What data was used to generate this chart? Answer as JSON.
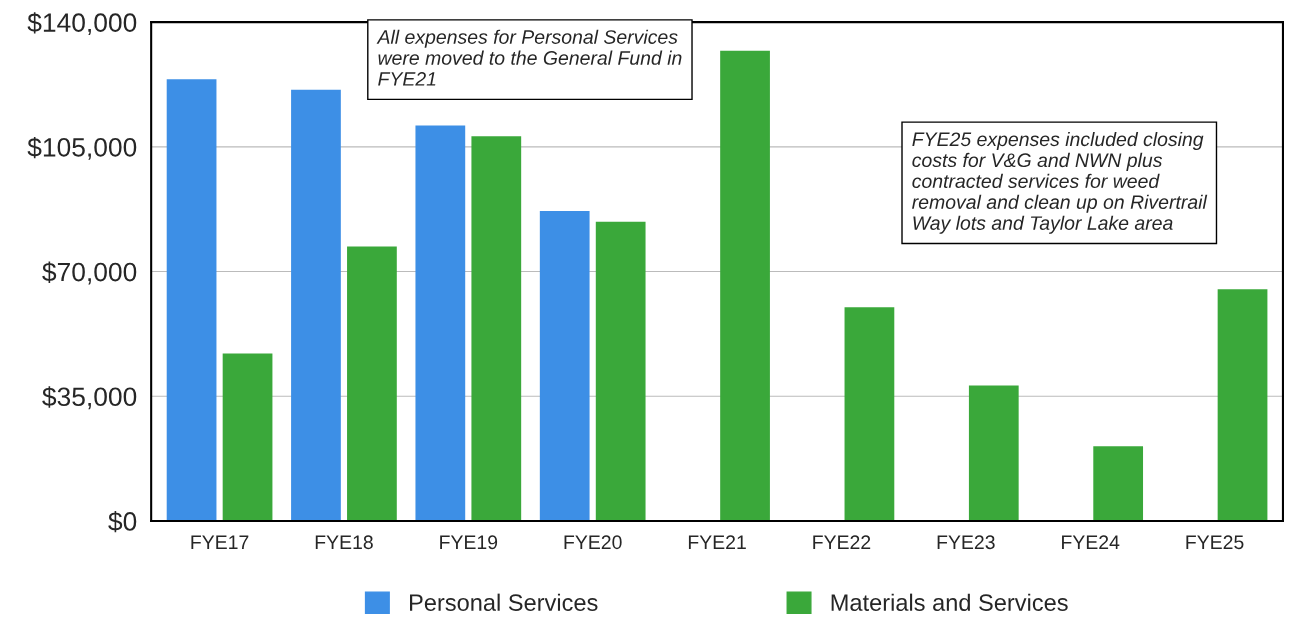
{
  "chart_data": {
    "type": "bar",
    "categories": [
      "FYE17",
      "FYE18",
      "FYE19",
      "FYE20",
      "FYE21",
      "FYE22",
      "FYE23",
      "FYE24",
      "FYE25"
    ],
    "series": [
      {
        "name": "Personal Services",
        "color": "#3d8fe6",
        "values": [
          124000,
          121000,
          111000,
          87000,
          null,
          null,
          null,
          null,
          null
        ]
      },
      {
        "name": "Materials and Services",
        "color": "#3aa83a",
        "values": [
          47000,
          77000,
          108000,
          84000,
          132000,
          60000,
          38000,
          21000,
          65000
        ]
      }
    ],
    "ylim": [
      0,
      140000
    ],
    "yticks": [
      {
        "value": 0,
        "label": "$0"
      },
      {
        "value": 35000,
        "label": "$35,000"
      },
      {
        "value": 70000,
        "label": "$70,000"
      },
      {
        "value": 105000,
        "label": "$105,000"
      },
      {
        "value": 140000,
        "label": "$140,000"
      }
    ],
    "grid": "y",
    "legend": "bottom",
    "annotations": [
      "All expenses for Personal Services were moved to the General Fund in FYE21",
      "FYE25 expenses included closing costs for V&G and NWN plus contracted services for weed removal and clean up on Rivertrail Way lots and Taylor Lake area"
    ]
  }
}
